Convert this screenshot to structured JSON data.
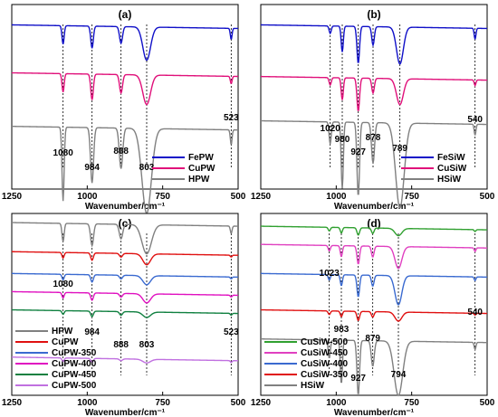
{
  "chart_data": [
    {
      "panel": "(a)",
      "type": "line",
      "xlabel": "Wavenumber/cm⁻¹",
      "xlim": [
        1250,
        500
      ],
      "xticks": [
        1250,
        1000,
        750,
        500
      ],
      "legend_position": "bottom-right",
      "peaks": [
        1080,
        984,
        888,
        803,
        523
      ],
      "annotations": [
        {
          "text": "1080",
          "x": 1080
        },
        {
          "text": "984",
          "x": 984
        },
        {
          "text": "888",
          "x": 888
        },
        {
          "text": "803",
          "x": 803
        },
        {
          "text": "523",
          "x": 523
        }
      ],
      "series": [
        {
          "name": "FePW",
          "color": "#1010c8",
          "offset": 0.88,
          "depths": [
            0.1,
            0.12,
            0.09,
            0.18,
            0.06
          ],
          "widths": [
            5,
            6,
            7,
            18,
            4
          ]
        },
        {
          "name": "CuPW",
          "color": "#e0107a",
          "offset": 0.62,
          "depths": [
            0.1,
            0.14,
            0.1,
            0.16,
            0.04
          ],
          "widths": [
            5,
            6,
            7,
            18,
            4
          ]
        },
        {
          "name": "HPW",
          "color": "#808080",
          "offset": 0.33,
          "depths": [
            0.4,
            0.3,
            0.22,
            0.46,
            0.08
          ],
          "widths": [
            5,
            7,
            8,
            22,
            4
          ]
        }
      ]
    },
    {
      "panel": "(b)",
      "type": "line",
      "xlabel": "Wavenumber/cm⁻¹",
      "xlim": [
        1250,
        500
      ],
      "xticks": [
        1250,
        1000,
        750,
        500
      ],
      "legend_position": "bottom-right",
      "peaks": [
        1020,
        980,
        927,
        878,
        789,
        540
      ],
      "annotations": [
        {
          "text": "1020",
          "x": 1020
        },
        {
          "text": "980",
          "x": 980
        },
        {
          "text": "927",
          "x": 927
        },
        {
          "text": "878",
          "x": 878
        },
        {
          "text": "789",
          "x": 789
        },
        {
          "text": "540",
          "x": 540
        }
      ],
      "series": [
        {
          "name": "FeSiW",
          "color": "#1010c8",
          "offset": 0.88,
          "depths": [
            0.04,
            0.14,
            0.2,
            0.1,
            0.2,
            0.06
          ],
          "widths": [
            5,
            5,
            6,
            6,
            16,
            4
          ]
        },
        {
          "name": "CuSiW",
          "color": "#e0107a",
          "offset": 0.6,
          "depths": [
            0.04,
            0.12,
            0.18,
            0.08,
            0.14,
            0.03
          ],
          "widths": [
            5,
            5,
            6,
            6,
            16,
            4
          ]
        },
        {
          "name": "HSiW",
          "color": "#808080",
          "offset": 0.36,
          "depths": [
            0.12,
            0.36,
            0.4,
            0.22,
            0.46,
            0.06
          ],
          "widths": [
            5,
            5,
            6,
            7,
            20,
            4
          ]
        }
      ]
    },
    {
      "panel": "(c)",
      "type": "line",
      "xlabel": "Wavenumber/cm⁻¹",
      "xlim": [
        1250,
        500
      ],
      "xticks": [
        1250,
        1000,
        750,
        500
      ],
      "legend_position": "bottom-left",
      "peaks": [
        1080,
        984,
        888,
        803,
        523
      ],
      "annotations": [
        {
          "text": "1080",
          "x": 1080
        },
        {
          "text": "984",
          "x": 984
        },
        {
          "text": "888",
          "x": 888
        },
        {
          "text": "803",
          "x": 803
        },
        {
          "text": "523",
          "x": 523
        }
      ],
      "series": [
        {
          "name": "HPW",
          "color": "#808080",
          "offset": 0.94,
          "depths": [
            0.1,
            0.12,
            0.08,
            0.16,
            0.04
          ],
          "widths": [
            5,
            7,
            8,
            22,
            4
          ]
        },
        {
          "name": "CuPW",
          "color": "#e01010",
          "offset": 0.78,
          "depths": [
            0.03,
            0.04,
            0.02,
            0.06,
            0.01
          ],
          "widths": [
            5,
            6,
            7,
            18,
            4
          ]
        },
        {
          "name": "CuPW-350",
          "color": "#3a6ad0",
          "offset": 0.66,
          "depths": [
            0.03,
            0.04,
            0.02,
            0.05,
            0.01
          ],
          "widths": [
            5,
            6,
            7,
            18,
            4
          ]
        },
        {
          "name": "CuPW-400",
          "color": "#e010c0",
          "offset": 0.56,
          "depths": [
            0.03,
            0.04,
            0.02,
            0.05,
            0.01
          ],
          "widths": [
            5,
            6,
            7,
            18,
            4
          ]
        },
        {
          "name": "CuPW-450",
          "color": "#108040",
          "offset": 0.46,
          "depths": [
            0.02,
            0.03,
            0.02,
            0.03,
            0.01
          ],
          "widths": [
            5,
            6,
            7,
            18,
            4
          ]
        },
        {
          "name": "CuPW-500",
          "color": "#c070e0",
          "offset": 0.2,
          "depths": [
            0.02,
            0.02,
            0.01,
            0.02,
            0.01
          ],
          "widths": [
            5,
            6,
            7,
            18,
            4
          ]
        }
      ]
    },
    {
      "panel": "(d)",
      "type": "line",
      "xlabel": "Wavenumber/cm⁻¹",
      "xlim": [
        1250,
        500
      ],
      "xticks": [
        1250,
        1000,
        750,
        500
      ],
      "legend_position": "bottom-left",
      "peaks": [
        1023,
        983,
        927,
        879,
        794,
        540
      ],
      "annotations": [
        {
          "text": "1023",
          "x": 1023
        },
        {
          "text": "983",
          "x": 983
        },
        {
          "text": "927",
          "x": 927
        },
        {
          "text": "879",
          "x": 879
        },
        {
          "text": "794",
          "x": 794
        },
        {
          "text": "540",
          "x": 540
        }
      ],
      "series": [
        {
          "name": "CuSiW-500",
          "color": "#30a030",
          "offset": 0.92,
          "depths": [
            0.02,
            0.03,
            0.04,
            0.03,
            0.04,
            0.01
          ],
          "widths": [
            5,
            5,
            6,
            6,
            16,
            4
          ]
        },
        {
          "name": "CuSiW-450",
          "color": "#e040c0",
          "offset": 0.82,
          "depths": [
            0.03,
            0.06,
            0.1,
            0.06,
            0.12,
            0.02
          ],
          "widths": [
            5,
            5,
            6,
            6,
            16,
            4
          ]
        },
        {
          "name": "CuSiW-400",
          "color": "#3a6ad0",
          "offset": 0.66,
          "depths": [
            0.03,
            0.06,
            0.12,
            0.06,
            0.16,
            0.02
          ],
          "widths": [
            5,
            5,
            6,
            6,
            16,
            4
          ]
        },
        {
          "name": "CuSiW-350",
          "color": "#e01010",
          "offset": 0.46,
          "depths": [
            0.02,
            0.03,
            0.05,
            0.03,
            0.05,
            0.01
          ],
          "widths": [
            5,
            5,
            6,
            6,
            16,
            4
          ]
        },
        {
          "name": "HSiW",
          "color": "#808080",
          "offset": 0.3,
          "depths": [
            0.1,
            0.24,
            0.3,
            0.14,
            0.3,
            0.04
          ],
          "widths": [
            5,
            5,
            6,
            7,
            20,
            4
          ]
        }
      ]
    }
  ]
}
